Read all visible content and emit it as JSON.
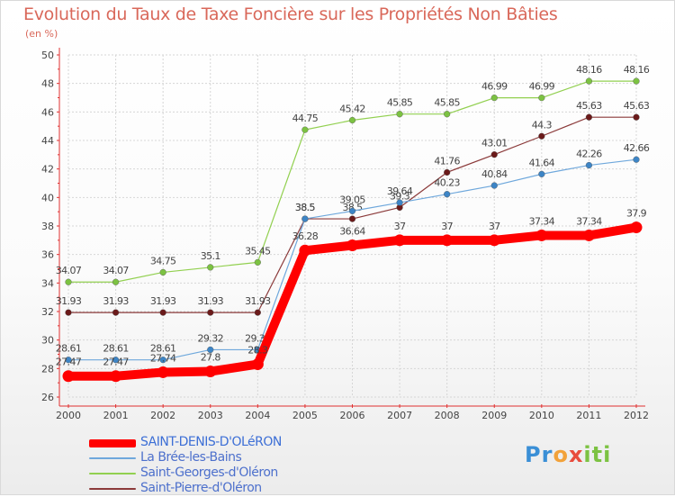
{
  "page": {
    "title": "Evolution du Taux de Taxe Foncière sur les Propriétés Non Bâties",
    "subtitle": "(en %)"
  },
  "logo": {
    "text": "Proxiti",
    "letters": [
      {
        "ch": "P",
        "color": "#3a8fd6"
      },
      {
        "ch": "r",
        "color": "#3a8fd6"
      },
      {
        "ch": "o",
        "color": "#f2a23a"
      },
      {
        "ch": "x",
        "color": "#e84c3d"
      },
      {
        "ch": "i",
        "color": "#7cc242"
      },
      {
        "ch": "t",
        "color": "#7cc242"
      },
      {
        "ch": "i",
        "color": "#7cc242"
      }
    ]
  },
  "chart_data": {
    "type": "line",
    "title": "Evolution du Taux de Taxe Foncière sur les Propriétés Non Bâties",
    "ylabel": "(en %)",
    "xlabel": "",
    "ylim": [
      26,
      50
    ],
    "yticks": [
      26,
      28,
      30,
      32,
      34,
      36,
      38,
      40,
      42,
      44,
      46,
      48,
      50
    ],
    "categories": [
      "2000",
      "2001",
      "2002",
      "2003",
      "2004",
      "2005",
      "2006",
      "2007",
      "2008",
      "2009",
      "2010",
      "2011",
      "2012"
    ],
    "grid": true,
    "legend": "bottom-left",
    "series": [
      {
        "name": "Saint-Georges-d'Oléron",
        "color": "#92d050",
        "marker": "#7cc242",
        "values": [
          34.07,
          34.07,
          34.75,
          35.1,
          35.45,
          44.75,
          45.42,
          45.85,
          45.85,
          46.99,
          46.99,
          48.16,
          48.16
        ],
        "labels": [
          "34.07",
          "34.07",
          "34.75",
          "35.1",
          "35.45",
          "44.75",
          "45.42",
          "45.85",
          "45.85",
          "46.99",
          "46.99",
          "48.16",
          "48.16"
        ]
      },
      {
        "name": "Saint-Pierre-d'Oléron",
        "color": "#8b3a3a",
        "marker": "#6b1a1a",
        "values": [
          31.93,
          31.93,
          31.93,
          31.93,
          31.93,
          38.5,
          38.5,
          39.3,
          41.76,
          43.01,
          44.3,
          45.63,
          45.63
        ],
        "labels": [
          "31.93",
          "31.93",
          "31.93",
          "31.93",
          "31.93",
          "38.5",
          "38.5",
          "39.3",
          "41.76",
          "43.01",
          "44.3",
          "45.63",
          "45.63"
        ]
      },
      {
        "name": "La Brée-les-Bains",
        "color": "#6fa8dc",
        "marker": "#3d85c6",
        "values": [
          28.61,
          28.61,
          28.61,
          29.32,
          29.32,
          38.5,
          39.05,
          39.64,
          40.23,
          40.84,
          41.64,
          42.26,
          42.66
        ],
        "labels": [
          "28.61",
          "28.61",
          "28.61",
          "29.32",
          "29.32",
          "38.5",
          "39.05",
          "39.64",
          "40.23",
          "40.84",
          "41.64",
          "42.26",
          "42.66"
        ]
      },
      {
        "name": "SAINT-DENIS-D'OLéRON",
        "color": "#ff0000",
        "marker": "#ff0000",
        "values": [
          27.47,
          27.47,
          27.74,
          27.8,
          28.3,
          36.28,
          36.64,
          37,
          37,
          37,
          37.34,
          37.34,
          37.9
        ],
        "labels": [
          "27.47",
          "27.47",
          "27.74",
          "27.8",
          "28.3",
          "36.28",
          "36.64",
          "37",
          "37",
          "37",
          "37.34",
          "37.34",
          "37.9"
        ]
      }
    ],
    "legend_order": [
      "SAINT-DENIS-D'OLéRON",
      "La Brée-les-Bains",
      "Saint-Georges-d'Oléron",
      "Saint-Pierre-d'Oléron"
    ]
  }
}
